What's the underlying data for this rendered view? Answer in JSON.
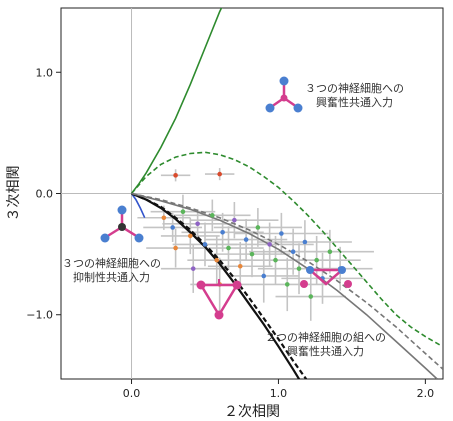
{
  "chart_data": {
    "type": "scatter",
    "title": "",
    "xlabel": "２次相関",
    "ylabel": "３次相関",
    "xlim": [
      -0.48,
      2.12
    ],
    "ylim": [
      -1.53,
      1.53
    ],
    "x_ticks": [
      0.0,
      1.0,
      2.0
    ],
    "x_tick_labels": [
      "0.0",
      "1.0",
      "2.0"
    ],
    "y_ticks": [
      1.0,
      0.0,
      -1.0
    ],
    "y_tick_labels": [
      "1.0",
      "0.0",
      "−1.0"
    ],
    "grid": false,
    "reference_lines": {
      "x": 0.0,
      "y": 0.0
    },
    "annotations": [
      {
        "text_lines": [
          "３つの神経細胞への",
          "興奮性共通入力"
        ]
      },
      {
        "text_lines": [
          "３つの神経細胞への",
          "抑制性共通入力"
        ]
      },
      {
        "text_lines": [
          "２つの神経細胞の組への",
          "興奮性共通入力"
        ]
      }
    ],
    "curves": [
      {
        "style": "solid",
        "color": "#2e8b2e",
        "points": [
          [
            0.0,
            0.0
          ],
          [
            0.05,
            0.08
          ],
          [
            0.1,
            0.17
          ],
          [
            0.2,
            0.38
          ],
          [
            0.3,
            0.62
          ],
          [
            0.4,
            0.9
          ],
          [
            0.5,
            1.2
          ],
          [
            0.6,
            1.5
          ],
          [
            0.62,
            1.55
          ]
        ]
      },
      {
        "style": "dashed",
        "color": "#2e8b2e",
        "points": [
          [
            0.0,
            0.0
          ],
          [
            0.1,
            0.14
          ],
          [
            0.2,
            0.24
          ],
          [
            0.3,
            0.3
          ],
          [
            0.4,
            0.33
          ],
          [
            0.5,
            0.34
          ],
          [
            0.6,
            0.32
          ],
          [
            0.7,
            0.28
          ],
          [
            0.8,
            0.22
          ],
          [
            0.9,
            0.14
          ],
          [
            1.0,
            0.05
          ],
          [
            1.1,
            -0.06
          ],
          [
            1.2,
            -0.18
          ],
          [
            1.3,
            -0.31
          ],
          [
            1.4,
            -0.45
          ],
          [
            1.5,
            -0.59
          ],
          [
            1.6,
            -0.73
          ],
          [
            1.7,
            -0.87
          ],
          [
            1.8,
            -1.0
          ],
          [
            1.9,
            -1.1
          ],
          [
            2.0,
            -1.18
          ],
          [
            2.1,
            -1.25
          ]
        ]
      },
      {
        "style": "solid",
        "color": "#3355cc",
        "points": [
          [
            0.0,
            0.0
          ],
          [
            0.03,
            -0.05
          ],
          [
            0.06,
            -0.12
          ],
          [
            0.09,
            -0.2
          ]
        ]
      },
      {
        "style": "solid",
        "color": "#111111",
        "points": [
          [
            0.0,
            0.0
          ],
          [
            0.1,
            -0.05
          ],
          [
            0.2,
            -0.12
          ],
          [
            0.3,
            -0.21
          ],
          [
            0.4,
            -0.32
          ],
          [
            0.5,
            -0.44
          ],
          [
            0.6,
            -0.58
          ],
          [
            0.7,
            -0.74
          ],
          [
            0.8,
            -0.91
          ],
          [
            0.9,
            -1.08
          ],
          [
            1.0,
            -1.26
          ],
          [
            1.1,
            -1.45
          ],
          [
            1.15,
            -1.55
          ]
        ]
      },
      {
        "style": "dashed",
        "color": "#111111",
        "points": [
          [
            0.0,
            0.0
          ],
          [
            0.1,
            -0.05
          ],
          [
            0.2,
            -0.11
          ],
          [
            0.3,
            -0.2
          ],
          [
            0.4,
            -0.3
          ],
          [
            0.5,
            -0.42
          ],
          [
            0.6,
            -0.55
          ],
          [
            0.7,
            -0.7
          ],
          [
            0.8,
            -0.86
          ],
          [
            0.9,
            -1.03
          ],
          [
            1.0,
            -1.2
          ],
          [
            1.1,
            -1.38
          ],
          [
            1.2,
            -1.55
          ]
        ]
      },
      {
        "style": "solid",
        "color": "#777777",
        "points": [
          [
            0.0,
            0.0
          ],
          [
            0.2,
            -0.06
          ],
          [
            0.4,
            -0.13
          ],
          [
            0.6,
            -0.22
          ],
          [
            0.8,
            -0.33
          ],
          [
            1.0,
            -0.46
          ],
          [
            1.2,
            -0.62
          ],
          [
            1.4,
            -0.8
          ],
          [
            1.6,
            -1.0
          ],
          [
            1.8,
            -1.22
          ],
          [
            2.0,
            -1.44
          ],
          [
            2.08,
            -1.53
          ]
        ]
      },
      {
        "style": "dashed",
        "color": "#777777",
        "points": [
          [
            0.0,
            0.0
          ],
          [
            0.2,
            -0.05
          ],
          [
            0.4,
            -0.12
          ],
          [
            0.6,
            -0.2
          ],
          [
            0.8,
            -0.3
          ],
          [
            1.0,
            -0.42
          ],
          [
            1.2,
            -0.56
          ],
          [
            1.4,
            -0.72
          ],
          [
            1.6,
            -0.9
          ],
          [
            1.8,
            -1.1
          ],
          [
            2.0,
            -1.32
          ],
          [
            2.12,
            -1.45
          ]
        ]
      }
    ],
    "points": [
      {
        "x": 0.22,
        "y": -0.2,
        "xerr": 0.18,
        "yerr": 0.1,
        "color": "#e8873a"
      },
      {
        "x": 0.28,
        "y": -0.28,
        "xerr": 0.2,
        "yerr": 0.12,
        "color": "#4a7fd0"
      },
      {
        "x": 0.35,
        "y": -0.15,
        "xerr": 0.22,
        "yerr": 0.14,
        "color": "#5bb55b"
      },
      {
        "x": 0.4,
        "y": -0.35,
        "xerr": 0.2,
        "yerr": 0.15,
        "color": "#e8873a"
      },
      {
        "x": 0.45,
        "y": -0.25,
        "xerr": 0.24,
        "yerr": 0.12,
        "color": "#8e63c4"
      },
      {
        "x": 0.5,
        "y": -0.42,
        "xerr": 0.22,
        "yerr": 0.18,
        "color": "#4a7fd0"
      },
      {
        "x": 0.55,
        "y": -0.18,
        "xerr": 0.26,
        "yerr": 0.13,
        "color": "#5bb55b"
      },
      {
        "x": 0.58,
        "y": -0.55,
        "xerr": 0.2,
        "yerr": 0.2,
        "color": "#e8873a"
      },
      {
        "x": 0.62,
        "y": -0.32,
        "xerr": 0.28,
        "yerr": 0.16,
        "color": "#4a7fd0"
      },
      {
        "x": 0.66,
        "y": -0.45,
        "xerr": 0.24,
        "yerr": 0.18,
        "color": "#5bb55b"
      },
      {
        "x": 0.7,
        "y": -0.22,
        "xerr": 0.3,
        "yerr": 0.15,
        "color": "#8e63c4"
      },
      {
        "x": 0.74,
        "y": -0.6,
        "xerr": 0.22,
        "yerr": 0.2,
        "color": "#e8873a"
      },
      {
        "x": 0.78,
        "y": -0.38,
        "xerr": 0.28,
        "yerr": 0.17,
        "color": "#4a7fd0"
      },
      {
        "x": 0.82,
        "y": -0.5,
        "xerr": 0.26,
        "yerr": 0.19,
        "color": "#5bb55b"
      },
      {
        "x": 0.86,
        "y": -0.28,
        "xerr": 0.3,
        "yerr": 0.16,
        "color": "#5bb55b"
      },
      {
        "x": 0.9,
        "y": -0.68,
        "xerr": 0.24,
        "yerr": 0.22,
        "color": "#4a7fd0"
      },
      {
        "x": 0.94,
        "y": -0.42,
        "xerr": 0.3,
        "yerr": 0.18,
        "color": "#8e63c4"
      },
      {
        "x": 0.98,
        "y": -0.55,
        "xerr": 0.28,
        "yerr": 0.2,
        "color": "#5bb55b"
      },
      {
        "x": 1.02,
        "y": -0.33,
        "xerr": 0.32,
        "yerr": 0.17,
        "color": "#4a7fd0"
      },
      {
        "x": 1.06,
        "y": -0.75,
        "xerr": 0.26,
        "yerr": 0.22,
        "color": "#5bb55b"
      },
      {
        "x": 1.1,
        "y": -0.48,
        "xerr": 0.3,
        "yerr": 0.19,
        "color": "#4a7fd0"
      },
      {
        "x": 1.14,
        "y": -0.62,
        "xerr": 0.28,
        "yerr": 0.21,
        "color": "#5bb55b"
      },
      {
        "x": 1.18,
        "y": -0.4,
        "xerr": 0.32,
        "yerr": 0.18,
        "color": "#4a7fd0"
      },
      {
        "x": 1.22,
        "y": -0.85,
        "xerr": 0.24,
        "yerr": 0.2,
        "color": "#5bb55b"
      },
      {
        "x": 1.26,
        "y": -0.55,
        "xerr": 0.3,
        "yerr": 0.2,
        "color": "#5bb55b"
      },
      {
        "x": 1.3,
        "y": -0.7,
        "xerr": 0.28,
        "yerr": 0.21,
        "color": "#4a7fd0"
      },
      {
        "x": 1.35,
        "y": -0.48,
        "xerr": 0.3,
        "yerr": 0.18,
        "color": "#5bb55b"
      },
      {
        "x": 1.42,
        "y": -0.62,
        "xerr": 0.22,
        "yerr": 0.18,
        "color": "#4a7fd0"
      },
      {
        "x": 0.3,
        "y": -0.45,
        "xerr": 0.2,
        "yerr": 0.16,
        "color": "#e8873a"
      },
      {
        "x": 0.42,
        "y": -0.62,
        "xerr": 0.22,
        "yerr": 0.2,
        "color": "#8e63c4"
      },
      {
        "x": 0.6,
        "y": -0.75,
        "xerr": 0.2,
        "yerr": 0.22,
        "color": "#e8873a"
      },
      {
        "x": 0.3,
        "y": 0.15,
        "xerr": 0.1,
        "yerr": 0.05,
        "color": "#d94a2c"
      },
      {
        "x": 0.6,
        "y": 0.16,
        "xerr": 0.1,
        "yerr": 0.05,
        "color": "#d94a2c"
      }
    ]
  }
}
